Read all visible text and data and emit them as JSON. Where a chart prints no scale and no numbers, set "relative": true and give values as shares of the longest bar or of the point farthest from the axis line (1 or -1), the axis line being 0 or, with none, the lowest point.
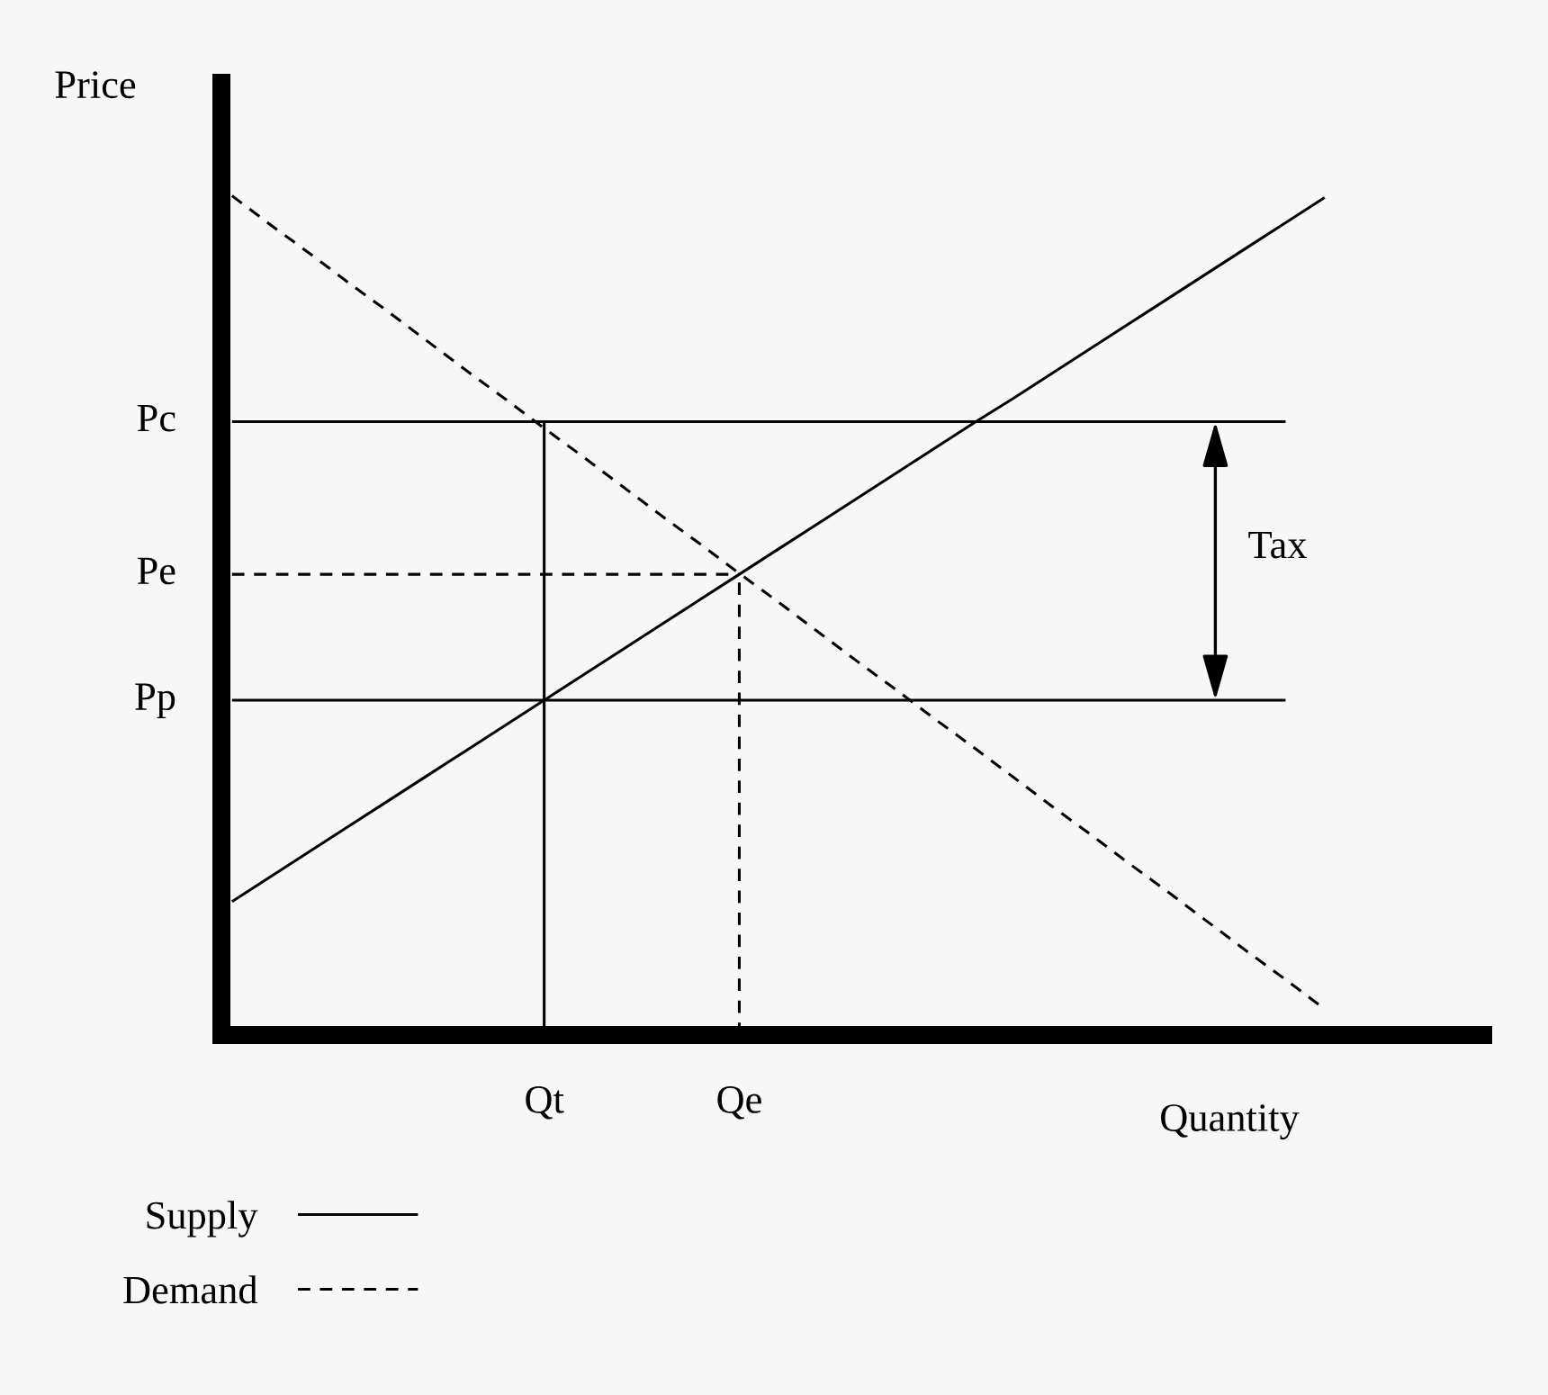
{
  "chart_data": {
    "type": "line",
    "relative": true,
    "xlabel": "Quantity",
    "ylabel": "Price",
    "legend": "bottom left",
    "categories": [
      null,
      null,
      null,
      null,
      null,
      null,
      null,
      null,
      "Qt",
      null,
      null,
      null,
      null,
      "Qe",
      null,
      null,
      null,
      null,
      null,
      null,
      null,
      null,
      null,
      null,
      null,
      null,
      null,
      null,
      null
    ],
    "series": [
      {
        "name": "Supply",
        "color": "#000000",
        "line_style": "solid",
        "values": [
          0.159,
          0.189,
          0.219,
          0.249,
          0.279,
          0.309,
          0.339,
          0.369,
          0.399,
          0.429,
          0.459,
          0.489,
          0.519,
          0.549,
          0.579,
          0.609,
          0.639,
          0.669,
          0.699,
          0.729,
          0.758,
          0.788,
          0.818,
          0.848,
          0.878,
          0.908,
          0.938,
          0.968,
          0.998
        ]
      },
      {
        "name": "Demand",
        "color": "#000000",
        "line_style": "dashed",
        "values": [
          1,
          0.965,
          0.931,
          0.896,
          0.862,
          0.827,
          0.792,
          0.758,
          0.723,
          0.689,
          0.654,
          0.619,
          0.585,
          0.55,
          0.516,
          0.481,
          0.446,
          0.412,
          0.377,
          0.343,
          0.308,
          0.273,
          0.239,
          0.204,
          0.17,
          0.135,
          0.1,
          0.066,
          0.031
        ]
      },
      {
        "name": "Pc",
        "color": "#000000",
        "line_style": "solid",
        "values": [
          0.731,
          0.731,
          0.731,
          0.731,
          0.731,
          0.731,
          0.731,
          0.731,
          0.731,
          0.731,
          0.731,
          0.731,
          0.731,
          0.731,
          0.731,
          0.731,
          0.731,
          0.731,
          0.731,
          0.731,
          0.731,
          0.731,
          0.731,
          0.731,
          0.731,
          0.731,
          0.731,
          0.731,
          null
        ]
      },
      {
        "name": "Pe",
        "color": "#000000",
        "line_style": "dashed",
        "values": [
          0.549,
          0.549,
          0.549,
          0.549,
          0.549,
          0.549,
          0.549,
          0.549,
          0.549,
          0.549,
          0.549,
          0.549,
          0.549,
          0.549,
          null,
          null,
          null,
          null,
          null,
          null,
          null,
          null,
          null,
          null,
          null,
          null,
          null,
          null,
          null
        ]
      },
      {
        "name": "Pp",
        "color": "#000000",
        "line_style": "solid",
        "values": [
          0.399,
          0.399,
          0.399,
          0.399,
          0.399,
          0.399,
          0.399,
          0.399,
          0.399,
          0.399,
          0.399,
          0.399,
          0.399,
          0.399,
          0.399,
          0.399,
          0.399,
          0.399,
          0.399,
          0.399,
          0.399,
          0.399,
          0.399,
          0.399,
          0.399,
          0.399,
          0.399,
          0.399,
          null
        ]
      },
      {
        "color": "#000000",
        "line_style": "solid",
        "x": [
          "Qt",
          "Qt"
        ],
        "values": [
          0,
          0.731
        ]
      },
      {
        "color": "#000000",
        "line_style": "dashed",
        "x": [
          "Qe",
          "Qe"
        ],
        "values": [
          0,
          0.549
        ]
      }
    ],
    "annotations": [
      "Tax"
    ]
  }
}
